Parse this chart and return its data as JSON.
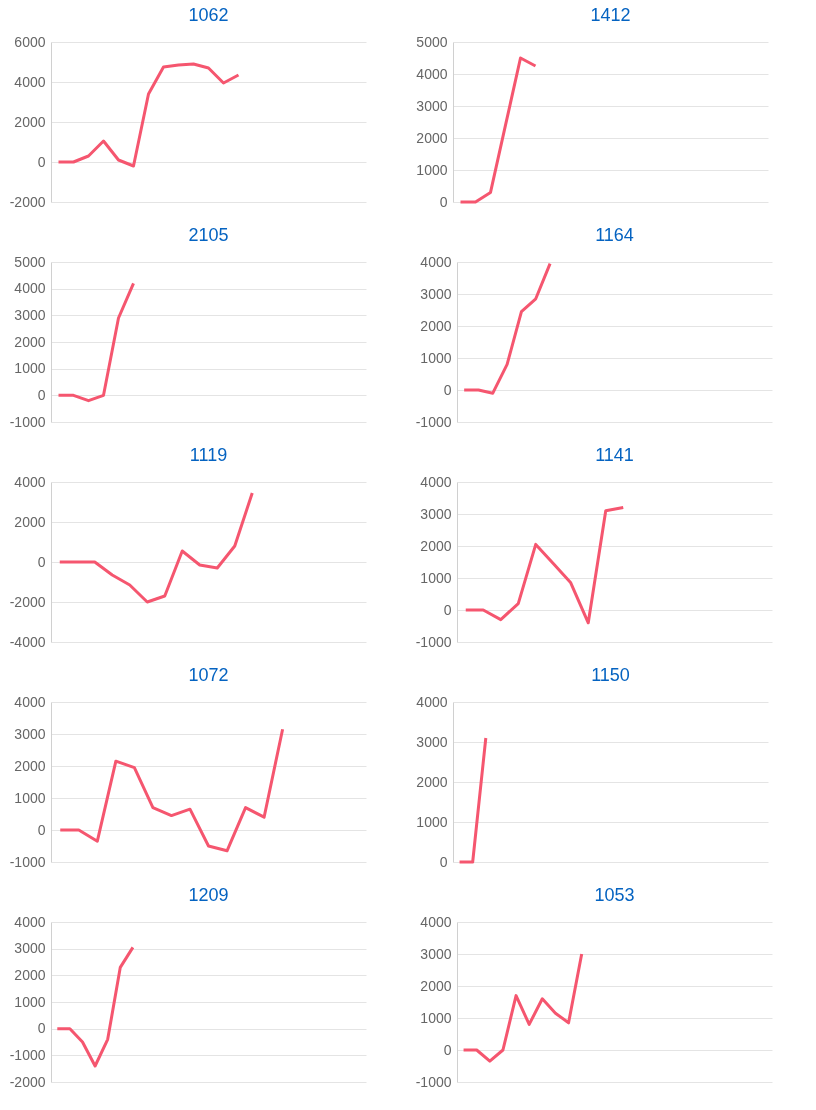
{
  "chart_data": [
    {
      "type": "line",
      "title": "1062",
      "tick_labels": "y",
      "grid": "y",
      "color": "#f5566f",
      "ylim": [
        -2000,
        6000
      ],
      "yticks": [
        -2000,
        0,
        2000,
        4000,
        6000
      ],
      "categories": [
        null,
        null,
        null,
        null,
        null,
        null,
        null,
        null,
        null,
        null,
        null,
        null,
        null,
        null,
        null,
        null,
        null,
        null,
        null,
        null,
        null
      ],
      "values": [
        0,
        0,
        300,
        1050,
        100,
        -200,
        3400,
        4750,
        4850,
        4900,
        4700,
        3950,
        4350,
        null,
        null,
        null,
        null,
        null,
        null,
        null,
        null
      ]
    },
    {
      "type": "line",
      "title": "1412",
      "tick_labels": "y",
      "grid": "y",
      "color": "#f5566f",
      "ylim": [
        0,
        5000
      ],
      "yticks": [
        0,
        1000,
        2000,
        3000,
        4000,
        5000
      ],
      "categories": [
        null,
        null,
        null,
        null,
        null,
        null,
        null,
        null,
        null,
        null,
        null,
        null,
        null,
        null,
        null,
        null,
        null,
        null,
        null,
        null,
        null
      ],
      "values": [
        0,
        0,
        300,
        2400,
        4500,
        4250,
        null,
        null,
        null,
        null,
        null,
        null,
        null,
        null,
        null,
        null,
        null,
        null,
        null,
        null,
        null
      ]
    },
    {
      "type": "line",
      "title": "2105",
      "tick_labels": "y",
      "grid": "y",
      "color": "#f5566f",
      "ylim": [
        -1000,
        5000
      ],
      "yticks": [
        -1000,
        0,
        1000,
        2000,
        3000,
        4000,
        5000
      ],
      "categories": [
        null,
        null,
        null,
        null,
        null,
        null,
        null,
        null,
        null,
        null,
        null,
        null,
        null,
        null,
        null,
        null,
        null,
        null,
        null,
        null,
        null
      ],
      "values": [
        0,
        0,
        -200,
        0,
        2900,
        4200,
        null,
        null,
        null,
        null,
        null,
        null,
        null,
        null,
        null,
        null,
        null,
        null,
        null,
        null,
        null
      ]
    },
    {
      "type": "line",
      "title": "1164",
      "tick_labels": "y",
      "grid": "y",
      "color": "#f5566f",
      "ylim": [
        -1000,
        4000
      ],
      "yticks": [
        -1000,
        0,
        1000,
        2000,
        3000,
        4000
      ],
      "categories": [
        null,
        null,
        null,
        null,
        null,
        null,
        null,
        null,
        null,
        null,
        null,
        null,
        null,
        null,
        null,
        null,
        null,
        null,
        null,
        null,
        null,
        null
      ],
      "values": [
        0,
        0,
        -100,
        800,
        2450,
        2850,
        3950,
        null,
        null,
        null,
        null,
        null,
        null,
        null,
        null,
        null,
        null,
        null,
        null,
        null,
        null,
        null
      ]
    },
    {
      "type": "line",
      "title": "1119",
      "tick_labels": "y",
      "grid": "y",
      "color": "#f5566f",
      "ylim": [
        -4000,
        4000
      ],
      "yticks": [
        -4000,
        -2000,
        0,
        2000,
        4000
      ],
      "categories": [
        null,
        null,
        null,
        null,
        null,
        null,
        null,
        null,
        null,
        null,
        null,
        null,
        null,
        null,
        null,
        null,
        null,
        null
      ],
      "values": [
        0,
        0,
        0,
        -650,
        -1150,
        -2000,
        -1700,
        550,
        -150,
        -300,
        800,
        3450,
        null,
        null,
        null,
        null,
        null,
        null
      ]
    },
    {
      "type": "line",
      "title": "1141",
      "tick_labels": "y",
      "grid": "y",
      "color": "#f5566f",
      "ylim": [
        -1000,
        4000
      ],
      "yticks": [
        -1000,
        0,
        1000,
        2000,
        3000,
        4000
      ],
      "categories": [
        null,
        null,
        null,
        null,
        null,
        null,
        null,
        null,
        null,
        null,
        null,
        null,
        null,
        null,
        null,
        null,
        null,
        null
      ],
      "values": [
        0,
        0,
        -300,
        200,
        2050,
        1450,
        850,
        -400,
        3100,
        3200,
        null,
        null,
        null,
        null,
        null,
        null,
        null,
        null
      ]
    },
    {
      "type": "line",
      "title": "1072",
      "tick_labels": "y",
      "grid": "y",
      "color": "#f5566f",
      "ylim": [
        -1000,
        4000
      ],
      "yticks": [
        -1000,
        0,
        1000,
        2000,
        3000,
        4000
      ],
      "categories": [
        null,
        null,
        null,
        null,
        null,
        null,
        null,
        null,
        null,
        null,
        null,
        null,
        null,
        null,
        null,
        null,
        null
      ],
      "values": [
        0,
        0,
        -350,
        2150,
        1950,
        700,
        450,
        650,
        -500,
        -650,
        700,
        400,
        3150,
        null,
        null,
        null,
        null
      ]
    },
    {
      "type": "line",
      "title": "1150",
      "tick_labels": "y",
      "grid": "y",
      "color": "#f5566f",
      "ylim": [
        0,
        4000
      ],
      "yticks": [
        0,
        1000,
        2000,
        3000,
        4000
      ],
      "categories": [
        null,
        null,
        null,
        null,
        null,
        null,
        null,
        null,
        null,
        null,
        null,
        null,
        null,
        null,
        null,
        null,
        null,
        null,
        null,
        null,
        null,
        null,
        null,
        null
      ],
      "values": [
        0,
        0,
        3100,
        null,
        null,
        null,
        null,
        null,
        null,
        null,
        null,
        null,
        null,
        null,
        null,
        null,
        null,
        null,
        null,
        null,
        null,
        null,
        null,
        null
      ]
    },
    {
      "type": "line",
      "title": "1209",
      "tick_labels": "y",
      "grid": "y",
      "color": "#f5566f",
      "ylim": [
        -2000,
        4000
      ],
      "yticks": [
        -2000,
        -1000,
        0,
        1000,
        2000,
        3000,
        4000
      ],
      "categories": [
        null,
        null,
        null,
        null,
        null,
        null,
        null,
        null,
        null,
        null,
        null,
        null,
        null,
        null,
        null,
        null,
        null,
        null,
        null,
        null,
        null,
        null,
        null,
        null,
        null
      ],
      "values": [
        0,
        0,
        -500,
        -1400,
        -400,
        2300,
        3050,
        null,
        null,
        null,
        null,
        null,
        null,
        null,
        null,
        null,
        null,
        null,
        null,
        null,
        null,
        null,
        null,
        null,
        null
      ]
    },
    {
      "type": "line",
      "title": "1053",
      "tick_labels": "y",
      "grid": "y",
      "color": "#f5566f",
      "ylim": [
        -1000,
        4000
      ],
      "yticks": [
        -1000,
        0,
        1000,
        2000,
        3000,
        4000
      ],
      "categories": [
        null,
        null,
        null,
        null,
        null,
        null,
        null,
        null,
        null,
        null,
        null,
        null,
        null,
        null,
        null,
        null,
        null,
        null,
        null,
        null,
        null,
        null,
        null,
        null
      ],
      "values": [
        0,
        0,
        -350,
        0,
        1700,
        800,
        1600,
        1150,
        850,
        3000,
        null,
        null,
        null,
        null,
        null,
        null,
        null,
        null,
        null,
        null,
        null,
        null,
        null,
        null
      ]
    }
  ]
}
